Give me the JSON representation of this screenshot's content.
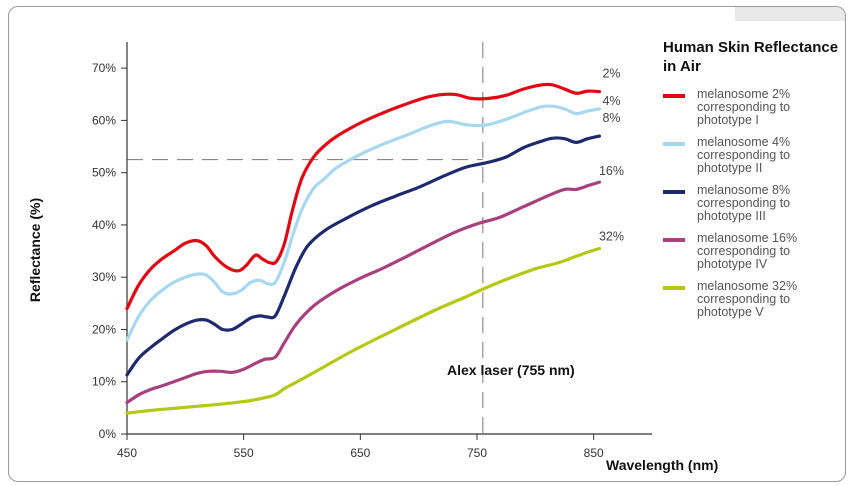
{
  "chart_data": {
    "type": "line",
    "title": "Human Skin Reflectance in Air",
    "xlabel": "Wavelength (nm)",
    "ylabel": "Reflectance (%)",
    "xlim": [
      450,
      900
    ],
    "ylim": [
      0,
      0.75
    ],
    "xticks": [
      "450",
      "550",
      "650",
      "750",
      "850"
    ],
    "yticks": [
      "0%",
      "10%",
      "20%",
      "30%",
      "40%",
      "50%",
      "60%",
      "70%"
    ],
    "annotation": "Alex laser (755 nm)",
    "reference_x": 755,
    "reference_y": 0.525,
    "series": [
      {
        "name": "melanosome 2% corresponding to phototype I",
        "end_label": "2%",
        "color": "#e30613",
        "points": [
          [
            450,
            0.24
          ],
          [
            460,
            0.285
          ],
          [
            470,
            0.315
          ],
          [
            480,
            0.335
          ],
          [
            490,
            0.35
          ],
          [
            500,
            0.365
          ],
          [
            510,
            0.37
          ],
          [
            518,
            0.36
          ],
          [
            525,
            0.34
          ],
          [
            535,
            0.32
          ],
          [
            545,
            0.312
          ],
          [
            552,
            0.322
          ],
          [
            560,
            0.342
          ],
          [
            566,
            0.335
          ],
          [
            572,
            0.328
          ],
          [
            578,
            0.33
          ],
          [
            585,
            0.365
          ],
          [
            592,
            0.43
          ],
          [
            600,
            0.49
          ],
          [
            610,
            0.53
          ],
          [
            620,
            0.553
          ],
          [
            630,
            0.57
          ],
          [
            650,
            0.595
          ],
          [
            670,
            0.615
          ],
          [
            690,
            0.632
          ],
          [
            710,
            0.646
          ],
          [
            730,
            0.65
          ],
          [
            745,
            0.642
          ],
          [
            760,
            0.642
          ],
          [
            775,
            0.648
          ],
          [
            790,
            0.66
          ],
          [
            805,
            0.668
          ],
          [
            815,
            0.668
          ],
          [
            825,
            0.66
          ],
          [
            835,
            0.652
          ],
          [
            845,
            0.656
          ],
          [
            855,
            0.655
          ]
        ]
      },
      {
        "name": "melanosome 4% corresponding to phototype II",
        "end_label": "4%",
        "color": "#a7d8f0",
        "points": [
          [
            450,
            0.18
          ],
          [
            460,
            0.225
          ],
          [
            470,
            0.255
          ],
          [
            480,
            0.275
          ],
          [
            490,
            0.29
          ],
          [
            500,
            0.3
          ],
          [
            510,
            0.306
          ],
          [
            518,
            0.304
          ],
          [
            525,
            0.29
          ],
          [
            532,
            0.272
          ],
          [
            540,
            0.268
          ],
          [
            548,
            0.275
          ],
          [
            556,
            0.29
          ],
          [
            564,
            0.294
          ],
          [
            570,
            0.288
          ],
          [
            577,
            0.29
          ],
          [
            585,
            0.33
          ],
          [
            592,
            0.38
          ],
          [
            600,
            0.43
          ],
          [
            610,
            0.47
          ],
          [
            620,
            0.49
          ],
          [
            630,
            0.51
          ],
          [
            650,
            0.535
          ],
          [
            670,
            0.555
          ],
          [
            690,
            0.572
          ],
          [
            710,
            0.59
          ],
          [
            725,
            0.598
          ],
          [
            740,
            0.592
          ],
          [
            750,
            0.59
          ],
          [
            760,
            0.592
          ],
          [
            775,
            0.602
          ],
          [
            790,
            0.615
          ],
          [
            805,
            0.626
          ],
          [
            815,
            0.627
          ],
          [
            825,
            0.622
          ],
          [
            835,
            0.613
          ],
          [
            845,
            0.618
          ],
          [
            855,
            0.622
          ]
        ]
      },
      {
        "name": "melanosome 8% corresponding to phototype III",
        "end_label": "8%",
        "color": "#1f2a6e",
        "points": [
          [
            450,
            0.113
          ],
          [
            460,
            0.145
          ],
          [
            470,
            0.165
          ],
          [
            480,
            0.182
          ],
          [
            490,
            0.198
          ],
          [
            500,
            0.21
          ],
          [
            510,
            0.218
          ],
          [
            518,
            0.218
          ],
          [
            525,
            0.21
          ],
          [
            532,
            0.2
          ],
          [
            540,
            0.2
          ],
          [
            548,
            0.21
          ],
          [
            556,
            0.222
          ],
          [
            564,
            0.226
          ],
          [
            570,
            0.224
          ],
          [
            577,
            0.226
          ],
          [
            585,
            0.265
          ],
          [
            595,
            0.32
          ],
          [
            605,
            0.36
          ],
          [
            620,
            0.39
          ],
          [
            640,
            0.415
          ],
          [
            660,
            0.437
          ],
          [
            680,
            0.455
          ],
          [
            700,
            0.472
          ],
          [
            720,
            0.492
          ],
          [
            740,
            0.51
          ],
          [
            760,
            0.52
          ],
          [
            775,
            0.53
          ],
          [
            790,
            0.548
          ],
          [
            805,
            0.56
          ],
          [
            815,
            0.566
          ],
          [
            825,
            0.565
          ],
          [
            835,
            0.558
          ],
          [
            845,
            0.565
          ],
          [
            855,
            0.57
          ]
        ]
      },
      {
        "name": "melanosome 16% corresponding to phototype IV",
        "end_label": "16%",
        "color": "#a8407e",
        "points": [
          [
            450,
            0.06
          ],
          [
            460,
            0.075
          ],
          [
            470,
            0.085
          ],
          [
            480,
            0.092
          ],
          [
            490,
            0.1
          ],
          [
            500,
            0.108
          ],
          [
            510,
            0.116
          ],
          [
            520,
            0.12
          ],
          [
            530,
            0.12
          ],
          [
            540,
            0.118
          ],
          [
            550,
            0.124
          ],
          [
            560,
            0.135
          ],
          [
            568,
            0.143
          ],
          [
            577,
            0.147
          ],
          [
            585,
            0.175
          ],
          [
            595,
            0.21
          ],
          [
            610,
            0.245
          ],
          [
            630,
            0.275
          ],
          [
            650,
            0.298
          ],
          [
            670,
            0.318
          ],
          [
            690,
            0.34
          ],
          [
            710,
            0.363
          ],
          [
            730,
            0.385
          ],
          [
            750,
            0.402
          ],
          [
            770,
            0.415
          ],
          [
            790,
            0.435
          ],
          [
            810,
            0.455
          ],
          [
            825,
            0.468
          ],
          [
            835,
            0.468
          ],
          [
            845,
            0.475
          ],
          [
            855,
            0.482
          ]
        ]
      },
      {
        "name": "melanosome 32% corresponding to phototype V",
        "end_label": "32%",
        "color": "#b5c814",
        "points": [
          [
            450,
            0.04
          ],
          [
            470,
            0.045
          ],
          [
            490,
            0.049
          ],
          [
            510,
            0.053
          ],
          [
            530,
            0.057
          ],
          [
            550,
            0.062
          ],
          [
            565,
            0.068
          ],
          [
            577,
            0.075
          ],
          [
            585,
            0.087
          ],
          [
            600,
            0.105
          ],
          [
            620,
            0.13
          ],
          [
            640,
            0.155
          ],
          [
            660,
            0.178
          ],
          [
            680,
            0.2
          ],
          [
            700,
            0.222
          ],
          [
            720,
            0.243
          ],
          [
            740,
            0.262
          ],
          [
            760,
            0.282
          ],
          [
            780,
            0.3
          ],
          [
            800,
            0.316
          ],
          [
            820,
            0.328
          ],
          [
            835,
            0.34
          ],
          [
            845,
            0.348
          ],
          [
            855,
            0.355
          ]
        ]
      }
    ]
  }
}
